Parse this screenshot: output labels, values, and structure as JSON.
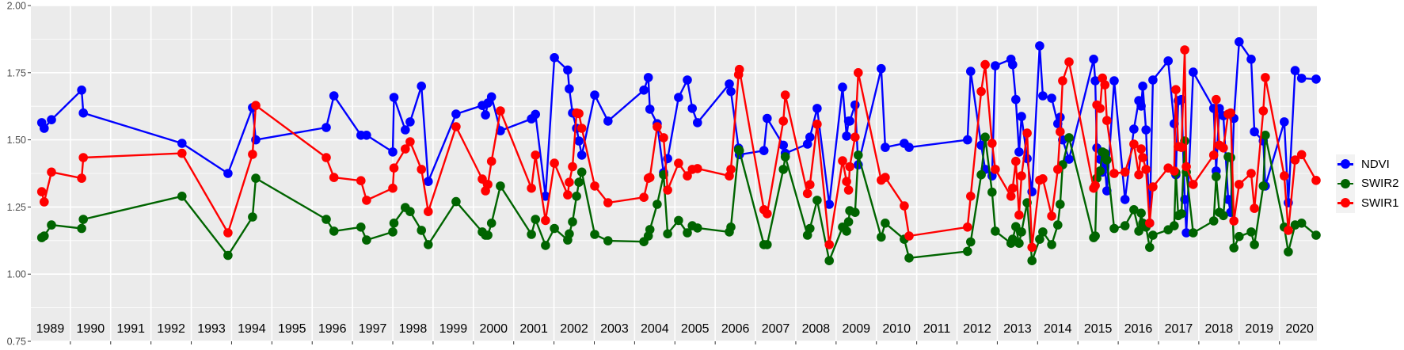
{
  "chart_data": {
    "type": "line",
    "title": "",
    "xlabel": "",
    "ylabel": "",
    "xlim": [
      1989.02,
      2020.93
    ],
    "ylim": [
      0.75,
      2.0
    ],
    "grid": true,
    "yticks": [
      "0.75",
      "1.00",
      "1.25",
      "1.50",
      "1.75",
      "2.00"
    ],
    "ytick_values": [
      0.75,
      1.0,
      1.25,
      1.5,
      1.75,
      2.0
    ],
    "year_labels": [
      "1989",
      "1990",
      "1991",
      "1992",
      "1993",
      "1994",
      "1995",
      "1996",
      "1997",
      "1998",
      "1999",
      "2000",
      "2001",
      "2002",
      "2003",
      "2004",
      "2005",
      "2006",
      "2007",
      "2008",
      "2009",
      "2010",
      "2011",
      "2012",
      "2013",
      "2014",
      "2015",
      "2016",
      "2017",
      "2018",
      "2019",
      "2020"
    ],
    "legend_position": "right",
    "x": [
      1989.29,
      1989.35,
      1989.53,
      1990.28,
      1990.32,
      1992.77,
      1993.91,
      1994.52,
      1994.6,
      1996.35,
      1996.54,
      1997.21,
      1997.35,
      1998.0,
      1998.03,
      1998.31,
      1998.43,
      1998.71,
      1998.88,
      1999.57,
      2000.22,
      2000.3,
      2000.36,
      2000.45,
      2000.67,
      2001.44,
      2001.54,
      2001.79,
      2002.01,
      2002.34,
      2002.38,
      2002.46,
      2002.56,
      2002.62,
      2002.69,
      2003.01,
      2003.34,
      2004.23,
      2004.34,
      2004.38,
      2004.56,
      2004.72,
      2004.82,
      2005.09,
      2005.31,
      2005.43,
      2005.56,
      2006.35,
      2006.39,
      2006.58,
      2006.6,
      2007.21,
      2007.29,
      2007.69,
      2007.74,
      2008.29,
      2008.35,
      2008.53,
      2008.83,
      2009.16,
      2009.26,
      2009.31,
      2009.34,
      2009.47,
      2009.55,
      2010.12,
      2010.22,
      2010.69,
      2010.81,
      2012.26,
      2012.34,
      2012.6,
      2012.7,
      2012.87,
      2012.95,
      2013.34,
      2013.38,
      2013.46,
      2013.54,
      2013.6,
      2013.74,
      2013.86,
      2014.05,
      2014.13,
      2014.35,
      2014.5,
      2014.56,
      2014.62,
      2014.78,
      2015.39,
      2015.43,
      2015.47,
      2015.55,
      2015.61,
      2015.67,
      2015.72,
      2015.9,
      2016.17,
      2016.39,
      2016.51,
      2016.57,
      2016.61,
      2016.69,
      2016.78,
      2016.86,
      2017.24,
      2017.39,
      2017.43,
      2017.49,
      2017.57,
      2017.65,
      2017.69,
      2017.86,
      2018.37,
      2018.43,
      2018.51,
      2018.61,
      2018.73,
      2018.79,
      2018.87,
      2019.0,
      2019.3,
      2019.38,
      2019.6,
      2019.65,
      2020.12,
      2020.22,
      2020.39,
      2020.55,
      2020.91
    ],
    "series": [
      {
        "name": "NDVI",
        "color": "#0000ff",
        "values": [
          1.564,
          1.543,
          1.575,
          1.685,
          1.6,
          1.487,
          1.375,
          1.62,
          1.5,
          1.546,
          1.664,
          1.517,
          1.517,
          1.455,
          1.658,
          1.537,
          1.567,
          1.7,
          1.345,
          1.596,
          1.628,
          1.593,
          1.637,
          1.66,
          1.534,
          1.578,
          1.595,
          1.29,
          1.806,
          1.76,
          1.69,
          1.6,
          1.543,
          1.496,
          1.443,
          1.667,
          1.57,
          1.685,
          1.732,
          1.614,
          1.56,
          1.378,
          1.43,
          1.658,
          1.723,
          1.617,
          1.564,
          1.708,
          1.68,
          1.469,
          1.445,
          1.46,
          1.58,
          1.48,
          1.45,
          1.484,
          1.51,
          1.617,
          1.26,
          1.696,
          1.514,
          1.57,
          1.57,
          1.63,
          1.407,
          1.765,
          1.472,
          1.487,
          1.472,
          1.5,
          1.755,
          1.48,
          1.39,
          1.366,
          1.776,
          1.8,
          1.78,
          1.65,
          1.455,
          1.587,
          1.43,
          1.307,
          1.85,
          1.664,
          1.655,
          1.56,
          1.584,
          1.5,
          1.428,
          1.8,
          1.72,
          1.47,
          1.428,
          1.38,
          1.4,
          1.31,
          1.72,
          1.278,
          1.54,
          1.646,
          1.626,
          1.7,
          1.537,
          1.19,
          1.723,
          1.794,
          1.56,
          1.37,
          1.646,
          1.65,
          1.278,
          1.154,
          1.752,
          1.617,
          1.384,
          1.617,
          1.59,
          1.278,
          1.23,
          1.58,
          1.865,
          1.8,
          1.53,
          1.496,
          1.328,
          1.567,
          1.266,
          1.758,
          1.729,
          1.726
        ]
      },
      {
        "name": "SWIR2",
        "color": "#006400",
        "values": [
          1.136,
          1.142,
          1.183,
          1.17,
          1.204,
          1.29,
          1.07,
          1.213,
          1.357,
          1.204,
          1.16,
          1.175,
          1.127,
          1.157,
          1.19,
          1.248,
          1.233,
          1.163,
          1.11,
          1.27,
          1.157,
          1.145,
          1.145,
          1.19,
          1.328,
          1.148,
          1.204,
          1.107,
          1.17,
          1.127,
          1.15,
          1.195,
          1.29,
          1.342,
          1.38,
          1.148,
          1.124,
          1.121,
          1.142,
          1.166,
          1.26,
          1.37,
          1.15,
          1.2,
          1.154,
          1.18,
          1.172,
          1.157,
          1.175,
          1.463,
          1.46,
          1.11,
          1.11,
          1.39,
          1.437,
          1.145,
          1.17,
          1.275,
          1.05,
          1.175,
          1.16,
          1.195,
          1.236,
          1.23,
          1.443,
          1.138,
          1.19,
          1.13,
          1.06,
          1.085,
          1.12,
          1.37,
          1.51,
          1.305,
          1.16,
          1.115,
          1.13,
          1.177,
          1.115,
          1.157,
          1.266,
          1.05,
          1.13,
          1.157,
          1.11,
          1.183,
          1.26,
          1.407,
          1.508,
          1.136,
          1.142,
          1.357,
          1.384,
          1.455,
          1.45,
          1.425,
          1.17,
          1.18,
          1.24,
          1.16,
          1.227,
          1.19,
          1.175,
          1.1,
          1.145,
          1.165,
          1.18,
          1.378,
          1.218,
          1.225,
          1.496,
          1.38,
          1.154,
          1.198,
          1.363,
          1.23,
          1.218,
          1.437,
          1.434,
          1.098,
          1.14,
          1.157,
          1.11,
          1.328,
          1.517,
          1.175,
          1.083,
          1.183,
          1.19,
          1.145
        ]
      },
      {
        "name": "SWIR1",
        "color": "#ff0000",
        "values": [
          1.307,
          1.269,
          1.38,
          1.357,
          1.434,
          1.45,
          1.154,
          1.446,
          1.628,
          1.434,
          1.36,
          1.348,
          1.275,
          1.32,
          1.395,
          1.466,
          1.493,
          1.39,
          1.233,
          1.549,
          1.354,
          1.31,
          1.334,
          1.42,
          1.608,
          1.32,
          1.443,
          1.2,
          1.413,
          1.295,
          1.342,
          1.4,
          1.6,
          1.598,
          1.543,
          1.328,
          1.266,
          1.286,
          1.357,
          1.36,
          1.549,
          1.508,
          1.313,
          1.413,
          1.366,
          1.39,
          1.393,
          1.366,
          1.39,
          1.743,
          1.762,
          1.24,
          1.225,
          1.57,
          1.667,
          1.3,
          1.333,
          1.558,
          1.11,
          1.422,
          1.345,
          1.313,
          1.4,
          1.51,
          1.75,
          1.35,
          1.36,
          1.254,
          1.142,
          1.175,
          1.29,
          1.68,
          1.78,
          1.487,
          1.39,
          1.29,
          1.32,
          1.42,
          1.22,
          1.366,
          1.525,
          1.1,
          1.35,
          1.355,
          1.216,
          1.39,
          1.53,
          1.72,
          1.79,
          1.32,
          1.33,
          1.63,
          1.617,
          1.73,
          1.705,
          1.572,
          1.375,
          1.38,
          1.484,
          1.37,
          1.466,
          1.434,
          1.39,
          1.19,
          1.325,
          1.395,
          1.384,
          1.687,
          1.475,
          1.472,
          1.835,
          1.4,
          1.334,
          1.443,
          1.65,
          1.48,
          1.47,
          1.596,
          1.6,
          1.198,
          1.334,
          1.375,
          1.245,
          1.608,
          1.732,
          1.366,
          1.163,
          1.425,
          1.445,
          1.349
        ]
      }
    ]
  }
}
